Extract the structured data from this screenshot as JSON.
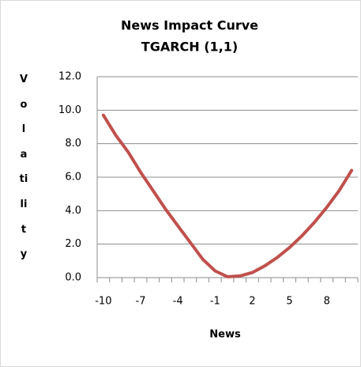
{
  "chart_data": {
    "type": "line",
    "title": "News Impact Curve",
    "subtitle": "TGARCH (1,1)",
    "xlabel": "News",
    "ylabel": "Volatility",
    "categories": [
      -10,
      null,
      null,
      -7,
      null,
      null,
      -4,
      null,
      null,
      -1,
      null,
      null,
      2,
      null,
      null,
      5,
      null,
      null,
      8,
      null,
      null
    ],
    "values": [
      9.7,
      8.5,
      7.5,
      6.3,
      5.2,
      4.1,
      3.1,
      2.1,
      1.1,
      0.4,
      0.05,
      0.1,
      0.3,
      0.7,
      1.2,
      1.8,
      2.5,
      3.3,
      4.2,
      5.2,
      6.4
    ],
    "color": "#c0504d",
    "ylim": [
      0,
      12
    ],
    "yticks": [
      {
        "value": 0,
        "label": "0.0"
      },
      {
        "value": 2,
        "label": "2.0"
      },
      {
        "value": 4,
        "label": "4.0"
      },
      {
        "value": 6,
        "label": "6.0"
      },
      {
        "value": 8,
        "label": "8.0"
      },
      {
        "value": 10,
        "label": "10.0"
      },
      {
        "value": 12,
        "label": "12.0"
      }
    ],
    "grid": true
  }
}
